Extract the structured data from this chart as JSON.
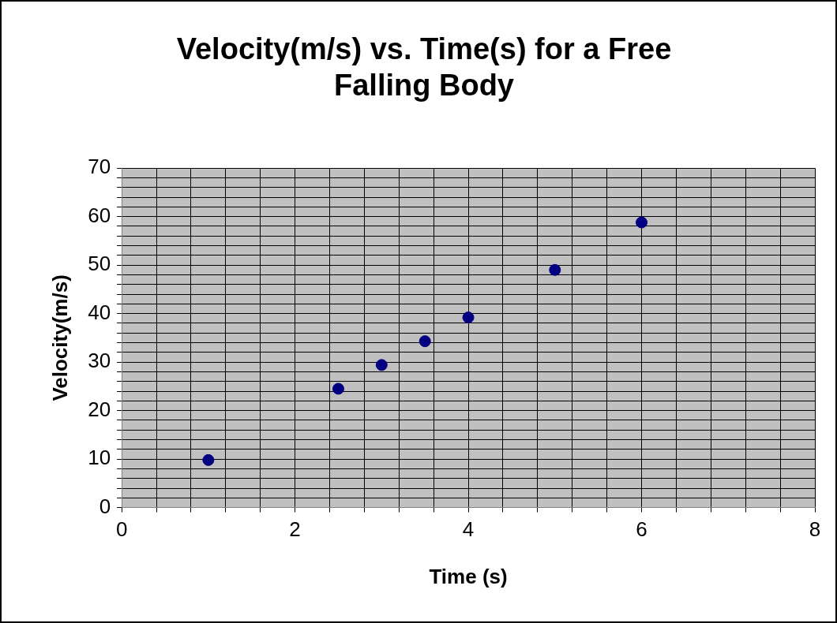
{
  "chart_data": {
    "type": "scatter",
    "title": "Velocity(m/s) vs. Time(s) for a Free Falling Body",
    "xlabel": "Time (s)",
    "ylabel": "Velocity(m/s)",
    "x": [
      1,
      2.5,
      3,
      3.5,
      4,
      5,
      6
    ],
    "series": [
      {
        "color": "#000080",
        "values": [
          9.8,
          24.5,
          29.4,
          34.3,
          39.2,
          49,
          58.8
        ]
      }
    ],
    "xlim": [
      0,
      8
    ],
    "xticks": [
      0,
      {
        "value": 0.4,
        "label": null
      },
      {
        "value": 0.8,
        "label": null
      },
      {
        "value": 1.2,
        "label": null
      },
      {
        "value": 1.6,
        "label": null
      },
      2,
      {
        "value": 2.4,
        "label": null
      },
      {
        "value": 2.8,
        "label": null
      },
      {
        "value": 3.2,
        "label": null
      },
      {
        "value": 3.6,
        "label": null
      },
      4,
      {
        "value": 4.4,
        "label": null
      },
      {
        "value": 4.8,
        "label": null
      },
      {
        "value": 5.2,
        "label": null
      },
      {
        "value": 5.6,
        "label": null
      },
      6,
      {
        "value": 6.4,
        "label": null
      },
      {
        "value": 6.8,
        "label": null
      },
      {
        "value": 7.2,
        "label": null
      },
      {
        "value": 7.6,
        "label": null
      },
      8
    ],
    "ylim": [
      0,
      70
    ],
    "yticks": [
      0,
      {
        "value": 2,
        "label": null
      },
      {
        "value": 4,
        "label": null
      },
      {
        "value": 6,
        "label": null
      },
      {
        "value": 8,
        "label": null
      },
      10,
      {
        "value": 12,
        "label": null
      },
      {
        "value": 14,
        "label": null
      },
      {
        "value": 16,
        "label": null
      },
      {
        "value": 18,
        "label": null
      },
      20,
      {
        "value": 22,
        "label": null
      },
      {
        "value": 24,
        "label": null
      },
      {
        "value": 26,
        "label": null
      },
      {
        "value": 28,
        "label": null
      },
      30,
      {
        "value": 32,
        "label": null
      },
      {
        "value": 34,
        "label": null
      },
      {
        "value": 36,
        "label": null
      },
      {
        "value": 38,
        "label": null
      },
      40,
      {
        "value": 42,
        "label": null
      },
      {
        "value": 44,
        "label": null
      },
      {
        "value": 46,
        "label": null
      },
      {
        "value": 48,
        "label": null
      },
      50,
      {
        "value": 52,
        "label": null
      },
      {
        "value": 54,
        "label": null
      },
      {
        "value": 56,
        "label": null
      },
      {
        "value": 58,
        "label": null
      },
      60,
      {
        "value": 62,
        "label": null
      },
      {
        "value": 64,
        "label": null
      },
      {
        "value": 66,
        "label": null
      },
      {
        "value": 68,
        "label": null
      },
      70
    ],
    "grid": true,
    "marker": "circle",
    "legend": false
  }
}
